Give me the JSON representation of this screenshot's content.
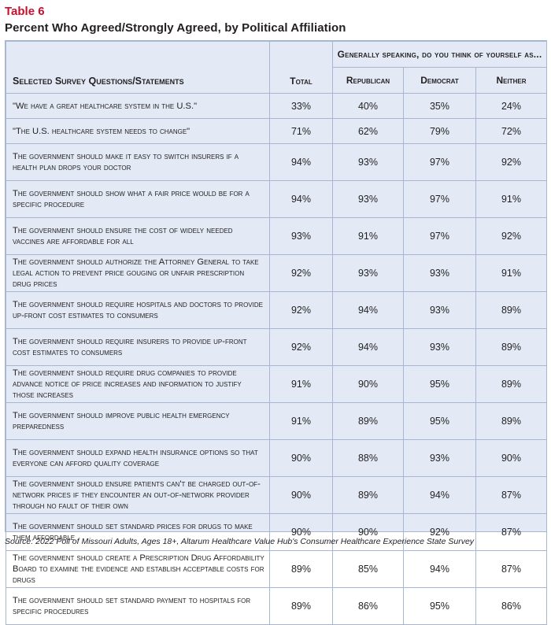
{
  "table_label": "Table 6",
  "table_title": "Percent Who Agreed/Strongly Agreed, by Political Affiliation",
  "header": {
    "group_label": "Generally speaking, do you think of yourself as...",
    "question_col": "Selected Survey Questions/Statements",
    "total_col": "Total",
    "republican_col": "Republican",
    "democrat_col": "Democrat",
    "neither_col": "Neither"
  },
  "rows": [
    {
      "q": "\"We have a great healthcare system in the U.S.\"",
      "total": "33%",
      "republican": "40%",
      "democrat": "35%",
      "neither": "24%"
    },
    {
      "q": "\"The U.S. healthcare system needs to change\"",
      "total": "71%",
      "republican": "62%",
      "democrat": "79%",
      "neither": "72%"
    },
    {
      "q": "The government should make it easy to switch insurers if a health plan drops your doctor",
      "total": "94%",
      "republican": "93%",
      "democrat": "97%",
      "neither": "92%"
    },
    {
      "q": "The government should show what a fair price would be for a specific procedure",
      "total": "94%",
      "republican": "93%",
      "democrat": "97%",
      "neither": "91%"
    },
    {
      "q": "The government should ensure the cost of widely needed vaccines are affordable for all",
      "total": "93%",
      "republican": "91%",
      "democrat": "97%",
      "neither": "92%"
    },
    {
      "q": "The government should authorize the Attorney General to take legal action to prevent price gouging or unfair prescription drug prices",
      "total": "92%",
      "republican": "93%",
      "democrat": "93%",
      "neither": "91%"
    },
    {
      "q": "The government should require hospitals and doctors to provide up-front cost estimates to consumers",
      "total": "92%",
      "republican": "94%",
      "democrat": "93%",
      "neither": "89%"
    },
    {
      "q": "The government should require insurers to provide up-front cost estimates to consumers",
      "total": "92%",
      "republican": "94%",
      "democrat": "93%",
      "neither": "89%"
    },
    {
      "q": "The government should require drug companies to provide advance notice of price increases and information to justify those increases",
      "total": "91%",
      "republican": "90%",
      "democrat": "95%",
      "neither": "89%"
    },
    {
      "q": "The government should improve public health emergency preparedness",
      "total": "91%",
      "republican": "89%",
      "democrat": "95%",
      "neither": "89%"
    },
    {
      "q": "The government should expand health insurance options so that everyone can afford quality coverage",
      "total": "90%",
      "republican": "88%",
      "democrat": "93%",
      "neither": "90%"
    },
    {
      "q": "The government should ensure patients can't be charged out-of-network prices if they encounter an out-of-network provider through no fault of their own",
      "total": "90%",
      "republican": "89%",
      "democrat": "94%",
      "neither": "87%"
    },
    {
      "q": "The government should set standard prices for drugs to make them affordable",
      "total": "90%",
      "republican": "90%",
      "democrat": "92%",
      "neither": "87%"
    },
    {
      "q": "The government should create a Prescription Drug Affordability Board to examine the evidence and establish acceptable costs for drugs",
      "total": "89%",
      "republican": "85%",
      "democrat": "94%",
      "neither": "87%"
    },
    {
      "q": "The government should set standard payment to hospitals for specific procedures",
      "total": "89%",
      "republican": "86%",
      "democrat": "95%",
      "neither": "86%"
    }
  ],
  "source": "Source: 2022 Poll of Missouri Adults, Ages 18+, Altarum Healthcare Value Hub's Consumer Healthcare Experience State Survey"
}
